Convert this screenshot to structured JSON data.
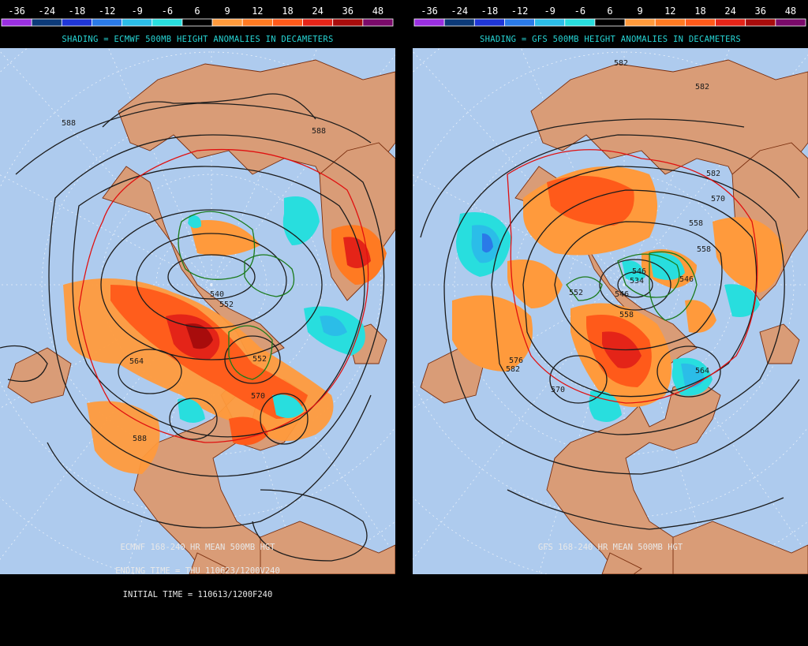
{
  "colorbar": {
    "ticks": [
      "-36",
      "-24",
      "-18",
      "-12",
      "-9",
      "-6",
      "6",
      "9",
      "12",
      "18",
      "24",
      "36",
      "48"
    ],
    "swatches": [
      "#9a2fe0",
      "#0c3a78",
      "#1f36d8",
      "#2a7ae8",
      "#2bbde8",
      "#28dede",
      "#000000",
      "#ff9a3c",
      "#ff7a22",
      "#ff5a1a",
      "#e42418",
      "#a80c0c",
      "#7a0a6a"
    ]
  },
  "colors": {
    "ocean": "#aecbee",
    "land": "#d99c77",
    "border": "#7a2e0e",
    "contour": "#1c1c1c",
    "contour_540": "#1a7a1a",
    "contour_576": "#e01010",
    "grid": "#e8f0fa"
  },
  "left": {
    "shading_label": "SHADING = ECMWF 500MB HEIGHT ANOMALIES IN DECAMETERS",
    "footer_lines": [
      "ECMWF 168-240 HR MEAN 500MB HGT",
      "ENDING TIME = THU 110623/1200V240",
      "INITIAL TIME = 110613/1200F240"
    ],
    "contour_labels": [
      "588",
      "588",
      "540",
      "552",
      "564",
      "552",
      "570",
      "588"
    ]
  },
  "right": {
    "shading_label": "SHADING = GFS 500MB HEIGHT ANOMALIES IN DECAMETERS",
    "footer_lines": [
      "GFS 168-240 HR MEAN 500MB HGT"
    ],
    "contour_labels": [
      "582",
      "582",
      "582",
      "570",
      "558",
      "558",
      "546",
      "546",
      "534",
      "546",
      "552",
      "558",
      "564",
      "576",
      "582",
      "570"
    ]
  }
}
